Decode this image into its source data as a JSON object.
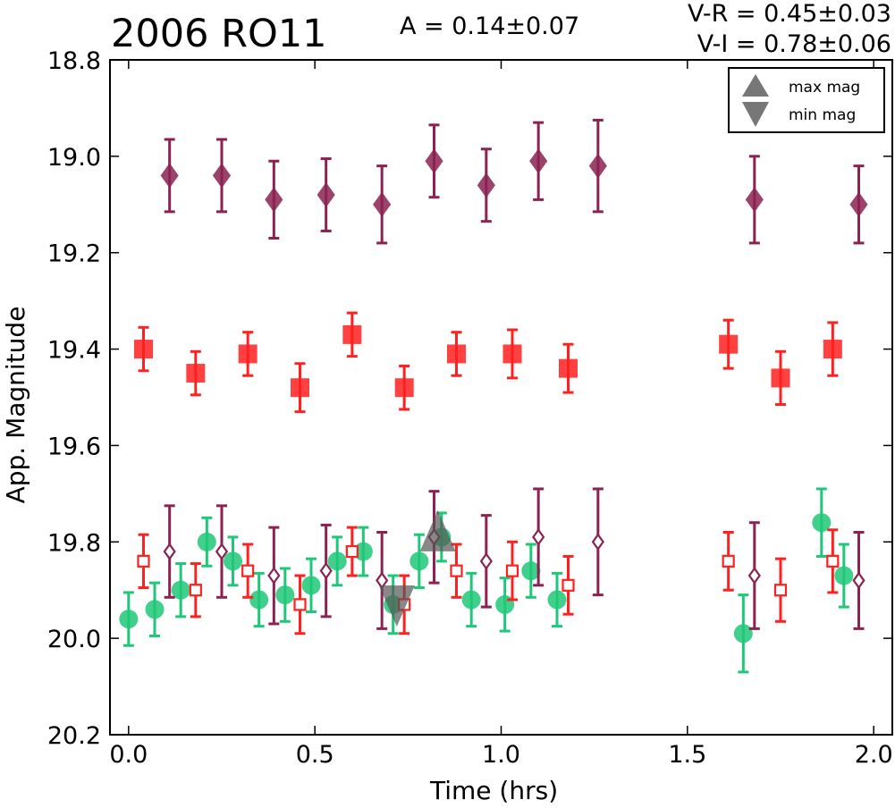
{
  "title": "2006 RO11",
  "annotations": {
    "amplitude": "A  = 0.14±0.07",
    "v_r": "V-R = 0.45±0.03",
    "v_i": "V-I  = 0.78±0.06"
  },
  "colors": {
    "I": "#8b2252",
    "R": "#ff2020",
    "V": "#1ec878",
    "marker_max_min": "#555555",
    "frame": "#000000"
  },
  "chart_data": {
    "type": "scatter",
    "title": "2006 RO11",
    "xlabel": "Time (hrs)",
    "ylabel": "App. Magnitude",
    "xlim": [
      -0.05,
      2.05
    ],
    "ylim": [
      20.2,
      18.8
    ],
    "y_inverted": true,
    "xticks": [
      0.0,
      0.5,
      1.0,
      1.5,
      2.0
    ],
    "xtick_labels": [
      "0.0",
      "0.5",
      "1.0",
      "1.5",
      "2.0"
    ],
    "yticks": [
      18.8,
      19.0,
      19.2,
      19.4,
      19.6,
      19.8,
      20.0,
      20.2
    ],
    "ytick_labels": [
      "18.8",
      "19.0",
      "19.2",
      "19.4",
      "19.6",
      "19.8",
      "20.0",
      "20.2"
    ],
    "grid": false,
    "legend": {
      "placement": "top-right",
      "entries": [
        {
          "label": "max mag",
          "marker": "triangle-up"
        },
        {
          "label": "min mag",
          "marker": "triangle-down"
        }
      ]
    },
    "series": [
      {
        "key": "I_filled",
        "marker": "diamond",
        "filled": true,
        "color": "#8b2252",
        "points": [
          {
            "x": 0.11,
            "y": 19.04,
            "err": 0.075
          },
          {
            "x": 0.25,
            "y": 19.04,
            "err": 0.075
          },
          {
            "x": 0.39,
            "y": 19.09,
            "err": 0.08
          },
          {
            "x": 0.53,
            "y": 19.08,
            "err": 0.075
          },
          {
            "x": 0.68,
            "y": 19.1,
            "err": 0.08
          },
          {
            "x": 0.82,
            "y": 19.01,
            "err": 0.075
          },
          {
            "x": 0.96,
            "y": 19.06,
            "err": 0.075
          },
          {
            "x": 1.1,
            "y": 19.01,
            "err": 0.08
          },
          {
            "x": 1.26,
            "y": 19.02,
            "err": 0.095
          },
          {
            "x": 1.68,
            "y": 19.09,
            "err": 0.09
          },
          {
            "x": 1.96,
            "y": 19.1,
            "err": 0.08
          }
        ]
      },
      {
        "key": "R_filled",
        "marker": "square",
        "filled": true,
        "color": "#ff2020",
        "points": [
          {
            "x": 0.04,
            "y": 19.4,
            "err": 0.045
          },
          {
            "x": 0.18,
            "y": 19.45,
            "err": 0.045
          },
          {
            "x": 0.32,
            "y": 19.41,
            "err": 0.045
          },
          {
            "x": 0.46,
            "y": 19.48,
            "err": 0.05
          },
          {
            "x": 0.6,
            "y": 19.37,
            "err": 0.045
          },
          {
            "x": 0.74,
            "y": 19.48,
            "err": 0.045
          },
          {
            "x": 0.88,
            "y": 19.41,
            "err": 0.045
          },
          {
            "x": 1.03,
            "y": 19.41,
            "err": 0.05
          },
          {
            "x": 1.18,
            "y": 19.44,
            "err": 0.05
          },
          {
            "x": 1.61,
            "y": 19.39,
            "err": 0.05
          },
          {
            "x": 1.75,
            "y": 19.46,
            "err": 0.055
          },
          {
            "x": 1.89,
            "y": 19.4,
            "err": 0.055
          }
        ]
      },
      {
        "key": "V",
        "marker": "circle",
        "filled": true,
        "color": "#1ec878",
        "points": [
          {
            "x": 0.0,
            "y": 19.96,
            "err": 0.055
          },
          {
            "x": 0.07,
            "y": 19.94,
            "err": 0.055
          },
          {
            "x": 0.14,
            "y": 19.9,
            "err": 0.055
          },
          {
            "x": 0.21,
            "y": 19.8,
            "err": 0.05
          },
          {
            "x": 0.28,
            "y": 19.84,
            "err": 0.05
          },
          {
            "x": 0.35,
            "y": 19.92,
            "err": 0.055
          },
          {
            "x": 0.42,
            "y": 19.91,
            "err": 0.055
          },
          {
            "x": 0.49,
            "y": 19.89,
            "err": 0.055
          },
          {
            "x": 0.56,
            "y": 19.84,
            "err": 0.05
          },
          {
            "x": 0.63,
            "y": 19.82,
            "err": 0.05
          },
          {
            "x": 0.71,
            "y": 19.93,
            "err": 0.06
          },
          {
            "x": 0.78,
            "y": 19.84,
            "err": 0.055
          },
          {
            "x": 0.84,
            "y": 19.79,
            "err": 0.05
          },
          {
            "x": 0.92,
            "y": 19.92,
            "err": 0.055
          },
          {
            "x": 1.01,
            "y": 19.93,
            "err": 0.055
          },
          {
            "x": 1.08,
            "y": 19.86,
            "err": 0.055
          },
          {
            "x": 1.15,
            "y": 19.92,
            "err": 0.055
          },
          {
            "x": 1.65,
            "y": 19.99,
            "err": 0.08
          },
          {
            "x": 1.86,
            "y": 19.76,
            "err": 0.07
          },
          {
            "x": 1.92,
            "y": 19.87,
            "err": 0.065
          }
        ]
      },
      {
        "key": "R_open",
        "marker": "square",
        "filled": false,
        "color": "#ff2020",
        "points": [
          {
            "x": 0.04,
            "y": 19.84,
            "err": 0.055
          },
          {
            "x": 0.18,
            "y": 19.9,
            "err": 0.055
          },
          {
            "x": 0.32,
            "y": 19.86,
            "err": 0.055
          },
          {
            "x": 0.46,
            "y": 19.93,
            "err": 0.06
          },
          {
            "x": 0.6,
            "y": 19.82,
            "err": 0.05
          },
          {
            "x": 0.74,
            "y": 19.93,
            "err": 0.06
          },
          {
            "x": 0.88,
            "y": 19.86,
            "err": 0.055
          },
          {
            "x": 1.03,
            "y": 19.86,
            "err": 0.06
          },
          {
            "x": 1.18,
            "y": 19.89,
            "err": 0.06
          },
          {
            "x": 1.61,
            "y": 19.84,
            "err": 0.06
          },
          {
            "x": 1.75,
            "y": 19.9,
            "err": 0.065
          },
          {
            "x": 1.89,
            "y": 19.84,
            "err": 0.065
          }
        ]
      },
      {
        "key": "I_open",
        "marker": "diamond",
        "filled": false,
        "color": "#8b2252",
        "points": [
          {
            "x": 0.11,
            "y": 19.82,
            "err": 0.095
          },
          {
            "x": 0.25,
            "y": 19.82,
            "err": 0.095
          },
          {
            "x": 0.39,
            "y": 19.87,
            "err": 0.1
          },
          {
            "x": 0.53,
            "y": 19.86,
            "err": 0.095
          },
          {
            "x": 0.68,
            "y": 19.88,
            "err": 0.1
          },
          {
            "x": 0.82,
            "y": 19.79,
            "err": 0.095
          },
          {
            "x": 0.96,
            "y": 19.84,
            "err": 0.095
          },
          {
            "x": 1.1,
            "y": 19.79,
            "err": 0.1
          },
          {
            "x": 1.26,
            "y": 19.8,
            "err": 0.11
          },
          {
            "x": 1.68,
            "y": 19.87,
            "err": 0.11
          },
          {
            "x": 1.96,
            "y": 19.88,
            "err": 0.1
          }
        ]
      },
      {
        "key": "max_mag",
        "marker": "triangle-up",
        "filled": true,
        "color": "#555555",
        "points": [
          {
            "x": 0.83,
            "y": 19.79
          }
        ]
      },
      {
        "key": "min_mag",
        "marker": "triangle-down",
        "filled": true,
        "color": "#555555",
        "points": [
          {
            "x": 0.72,
            "y": 19.92
          }
        ]
      }
    ]
  }
}
